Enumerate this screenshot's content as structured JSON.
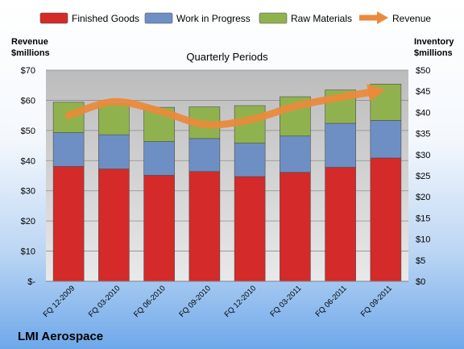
{
  "company": "LMI Aerospace",
  "chart_data": {
    "type": "bar",
    "stacked": true,
    "subtitle": "Quarterly Periods",
    "categories": [
      "FQ 12-2009",
      "FQ 03-2010",
      "FQ 06-2010",
      "FQ 09-2010",
      "FQ 12-2010",
      "FQ 03-2011",
      "FQ 06-2011",
      "FQ 09-2011"
    ],
    "series": [
      {
        "name": "Finished Goods",
        "axis": "right",
        "color": "#d42a2a",
        "values": [
          27.2,
          26.6,
          25.1,
          26.0,
          24.8,
          25.8,
          27.0,
          29.2
        ]
      },
      {
        "name": "Work in Progress",
        "axis": "right",
        "color": "#6d8fc4",
        "values": [
          8.0,
          8.1,
          8.0,
          7.8,
          7.9,
          8.6,
          10.4,
          8.9
        ]
      },
      {
        "name": "Raw Materials",
        "axis": "right",
        "color": "#90b24e",
        "values": [
          7.2,
          7.3,
          8.1,
          7.5,
          8.9,
          9.3,
          7.9,
          8.6
        ]
      }
    ],
    "line_series": {
      "name": "Revenue",
      "axis": "left",
      "color": "#eb8a3a",
      "values": [
        55.0,
        59.5,
        56.5,
        52.0,
        53.5,
        58.0,
        61.0,
        63.5
      ]
    },
    "left_axis": {
      "label_line1": "Revenue",
      "label_line2": "$millions",
      "ylim": [
        0,
        70
      ],
      "ticks": [
        "$-",
        "$10",
        "$20",
        "$30",
        "$40",
        "$50",
        "$60",
        "$70"
      ]
    },
    "right_axis": {
      "label_line1": "Inventory",
      "label_line2": "$millions",
      "ylim": [
        0,
        50
      ],
      "ticks": [
        "$0",
        "$5",
        "$10",
        "$15",
        "$20",
        "$25",
        "$30",
        "$35",
        "$40",
        "$45",
        "$50"
      ]
    },
    "legend_position": "top",
    "grid": true
  }
}
